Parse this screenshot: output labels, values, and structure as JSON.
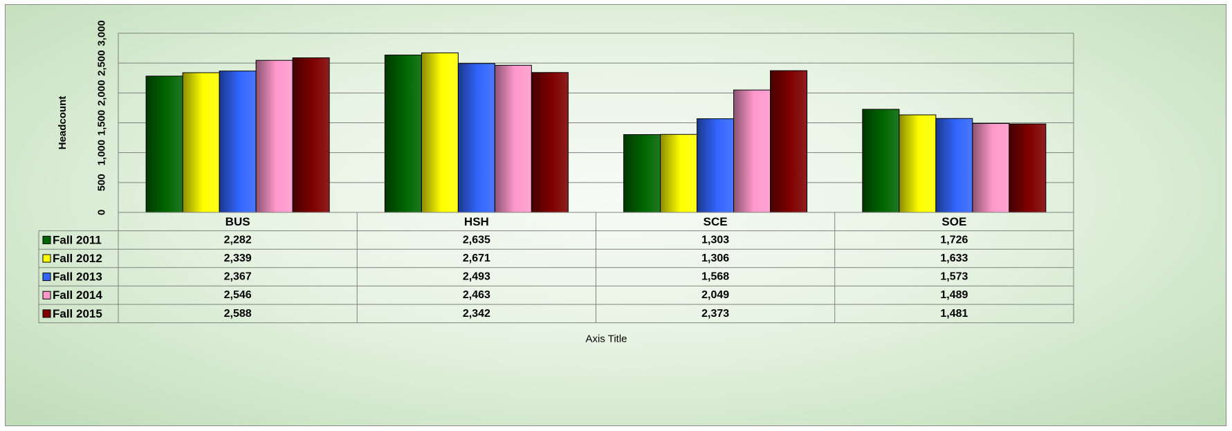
{
  "chart_data": {
    "type": "bar",
    "title": "",
    "xlabel": "Axis Title",
    "ylabel": "Headcount",
    "ylim": [
      0,
      3000
    ],
    "yticks": [
      "0",
      "500",
      "1,000",
      "1,500",
      "2,000",
      "2,500",
      "3,000"
    ],
    "grid": true,
    "legend": "data-table",
    "categories": [
      "BUS",
      "HSH",
      "SCE",
      "SOE"
    ],
    "series": [
      {
        "name": "Fall 2011",
        "color": "#006600",
        "values": [
          2282,
          2635,
          1303,
          1726
        ],
        "labels": [
          "2,282",
          "2,635",
          "1,303",
          "1,726"
        ]
      },
      {
        "name": "Fall 2012",
        "color": "#ffff00",
        "values": [
          2339,
          2671,
          1306,
          1633
        ],
        "labels": [
          "2,339",
          "2,671",
          "1,306",
          "1,633"
        ]
      },
      {
        "name": "Fall 2013",
        "color": "#3366ff",
        "values": [
          2367,
          2493,
          1568,
          1573
        ],
        "labels": [
          "2,367",
          "2,493",
          "1,568",
          "1,573"
        ]
      },
      {
        "name": "Fall 2014",
        "color": "#ff99cc",
        "values": [
          2546,
          2463,
          2049,
          1489
        ],
        "labels": [
          "2,546",
          "2,463",
          "2,049",
          "1,489"
        ]
      },
      {
        "name": "Fall 2015",
        "color": "#800000",
        "values": [
          2588,
          2342,
          2373,
          1481
        ],
        "labels": [
          "2,588",
          "2,342",
          "2,373",
          "1,481"
        ]
      }
    ]
  }
}
